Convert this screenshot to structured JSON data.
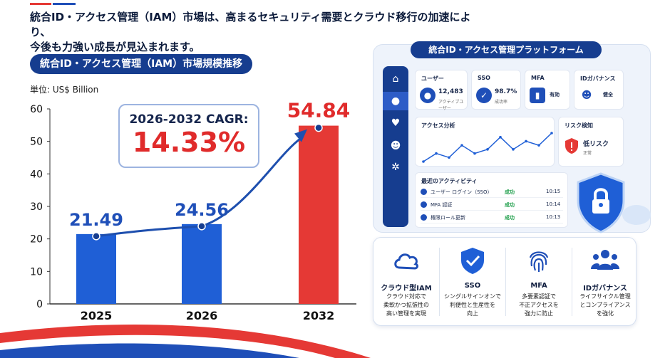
{
  "headline": {
    "line1": "統合ID・アクセス管理（IAM）市場は、高まるセキュリティ需要とクラウド移行の加速により、",
    "line2": "今後も力強い成長が見込まれます。"
  },
  "chart_title": "統合ID・アクセス管理（IAM）市場規模推移",
  "unit_label": "単位: US$ Billion",
  "cagr": {
    "label": "2026-2032 CAGR:",
    "value": "14.33%"
  },
  "chart_data": {
    "type": "bar",
    "title": "統合ID・アクセス管理（IAM）市場規模推移",
    "ylabel": "単位: US$ Billion",
    "xlabel": "",
    "categories": [
      "2025",
      "2026",
      "2032"
    ],
    "values": [
      21.49,
      24.56,
      54.84
    ],
    "value_labels": [
      "21.49",
      "24.56",
      "54.84"
    ],
    "ylim": [
      0,
      60
    ],
    "yticks": [
      0,
      10,
      20,
      30,
      40,
      50,
      60
    ],
    "bar_colors": [
      "#1f5fd6",
      "#1f5fd6",
      "#e53935"
    ],
    "label_colors": [
      "#1f4fb8",
      "#1f4fb8",
      "#e02b2b"
    ],
    "trend_line": true,
    "grid": false
  },
  "platform": {
    "title": "統合ID・アクセス管理プラットフォーム",
    "sidebar_icons": [
      "home-icon",
      "user-icon",
      "shield-icon",
      "users-icon",
      "gear-icon"
    ],
    "cards": {
      "users": {
        "title": "ユーザー",
        "value": "12,483",
        "sub": "アクティブユーザー"
      },
      "sso": {
        "title": "SSO",
        "value": "98.7%",
        "sub": "成功率"
      },
      "mfa": {
        "title": "MFA",
        "value": "有効"
      },
      "governance": {
        "title": "IDガバナンス",
        "value": "健全"
      },
      "access": {
        "title": "アクセス分析"
      },
      "risk": {
        "title": "リスク検知",
        "value": "低リスク",
        "sub": "正常"
      }
    },
    "access_series": [
      3,
      5,
      4,
      7,
      5,
      6,
      9,
      6,
      8,
      7,
      10
    ],
    "activity": {
      "title": "最近のアクティビティ",
      "rows": [
        {
          "event": "ユーザー ログイン（SSO）",
          "status": "成功",
          "time": "10:15"
        },
        {
          "event": "MFA 認証",
          "status": "成功",
          "time": "10:14"
        },
        {
          "event": "権限ロール更新",
          "status": "成功",
          "time": "10:13"
        }
      ]
    }
  },
  "features": [
    {
      "icon": "cloud-icon",
      "title": "クラウド型IAM",
      "desc": [
        "クラウド対応で",
        "柔軟かつ拡張性の",
        "高い管理を実現"
      ]
    },
    {
      "icon": "shield-check-icon",
      "title": "SSO",
      "desc": [
        "シングルサインオンで",
        "利便性と生産性を",
        "向上"
      ]
    },
    {
      "icon": "fingerprint-icon",
      "title": "MFA",
      "desc": [
        "多要素認証で",
        "不正アクセスを",
        "強力に防止"
      ]
    },
    {
      "icon": "users-icon",
      "title": "IDガバナンス",
      "desc": [
        "ライフサイクル管理",
        "とコンプライアンス",
        "を強化"
      ]
    }
  ],
  "colors": {
    "navy": "#163d8f",
    "blue": "#1f5fd6",
    "red": "#e53935"
  }
}
